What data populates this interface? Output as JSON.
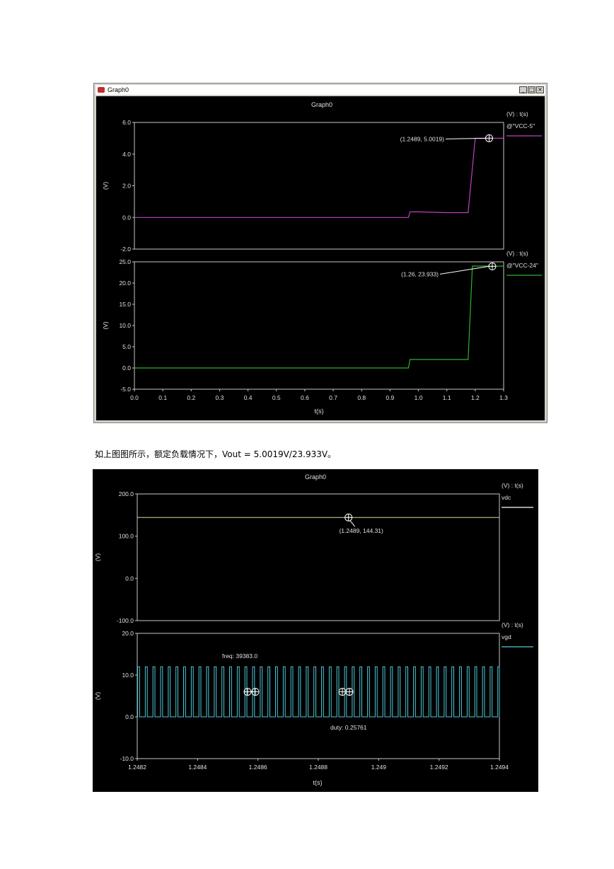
{
  "window1": {
    "title": "Graph0",
    "controls": [
      "_",
      "□",
      "×"
    ],
    "chart": {
      "title": "Graph0",
      "xlabel": "t(s)",
      "xlim": [
        0.0,
        1.3
      ],
      "xticks": [
        "0.0",
        "0.1",
        "0.2",
        "0.3",
        "0.4",
        "0.5",
        "0.6",
        "0.7",
        "0.8",
        "0.9",
        "1.0",
        "1.1",
        "1.2",
        "1.3"
      ],
      "subplots": [
        {
          "ylabel": "(V)",
          "unit_label": "(V) : t(s)",
          "ylim": [
            -2.0,
            6.0
          ],
          "yticks": [
            "6.0",
            "4.0",
            "2.0",
            "0.0",
            "-2.0"
          ],
          "series_name": "@\"VCC-5\"",
          "color": "#c040c0",
          "annotation": "(1.2489, 5.0019)",
          "marker": [
            1.2489,
            5.0019
          ]
        },
        {
          "ylabel": "(V)",
          "unit_label": "(V) : t(s)",
          "ylim": [
            -5.0,
            25.0
          ],
          "yticks": [
            "25.0",
            "20.0",
            "15.0",
            "10.0",
            "5.0",
            "0.0",
            "-5.0"
          ],
          "series_name": "@\"VCC-24\"",
          "color": "#30b030",
          "annotation": "(1.26, 23.933)",
          "marker": [
            1.26,
            23.933
          ]
        }
      ]
    }
  },
  "caption": "如上图图所示，额定负载情况下，Vout  =  5.0019V/23.933V。",
  "window2": {
    "chart": {
      "title": "Graph0",
      "xlabel": "t(s)",
      "xlim": [
        1.2482,
        1.2494
      ],
      "xticks": [
        "1.2482",
        "1.2484",
        "1.2486",
        "1.2488",
        "1.249",
        "1.2492",
        "1.2494"
      ],
      "subplots": [
        {
          "ylabel": "(V)",
          "unit_label": "(V) : t(s)",
          "ylim": [
            -100.0,
            200.0
          ],
          "yticks": [
            "200.0",
            "100.0",
            "0.0",
            "-100.0"
          ],
          "series_name": "vdc",
          "color": "#ffffff",
          "trace_color": "#d8d8a0",
          "annotation": "(1.2489, 144.31)",
          "marker": [
            1.2489,
            144.31
          ]
        },
        {
          "ylabel": "(V)",
          "unit_label": "(V) : t(s)",
          "ylim": [
            -10.0,
            20.0
          ],
          "yticks": [
            "20.0",
            "10.0",
            "0.0",
            "-10.0"
          ],
          "series_name": "vgd",
          "color": "#50c8d8",
          "freq_label": "freq: 39383.0",
          "duty_label": "duty: 0.25761",
          "pulse_high": 12.0
        }
      ]
    }
  },
  "chart_data": [
    {
      "type": "line",
      "title": "Graph0",
      "xlabel": "t(s)",
      "ylabel": "(V)",
      "xlim": [
        0.0,
        1.3
      ],
      "series": [
        {
          "name": "@\"VCC-5\"",
          "ylim": [
            -2.0,
            6.0
          ],
          "x": [
            0.0,
            0.965,
            0.97,
            1.0,
            1.1,
            1.175,
            1.2,
            1.23,
            1.2489,
            1.3
          ],
          "y": [
            0.0,
            0.0,
            0.35,
            0.35,
            0.3,
            0.3,
            5.0,
            5.0,
            5.0019,
            5.0
          ]
        },
        {
          "name": "@\"VCC-24\"",
          "ylim": [
            -5.0,
            25.0
          ],
          "x": [
            0.0,
            0.965,
            0.97,
            1.0,
            1.1,
            1.175,
            1.19,
            1.25,
            1.26,
            1.3
          ],
          "y": [
            0.0,
            0.0,
            2.0,
            2.0,
            2.0,
            2.0,
            24.0,
            24.0,
            23.933,
            24.0
          ]
        }
      ]
    },
    {
      "type": "line",
      "title": "Graph0",
      "xlabel": "t(s)",
      "ylabel": "(V)",
      "xlim": [
        1.2482,
        1.2494
      ],
      "series": [
        {
          "name": "vdc",
          "ylim": [
            -100.0,
            200.0
          ],
          "x": [
            1.2482,
            1.2494
          ],
          "y": [
            144.31,
            144.31
          ]
        },
        {
          "name": "vgd",
          "ylim": [
            -10.0,
            20.0
          ],
          "pulse": {
            "frequency_hz": 39383.0,
            "duty": 0.25761,
            "low": 0.0,
            "high": 12.0
          }
        }
      ]
    }
  ]
}
